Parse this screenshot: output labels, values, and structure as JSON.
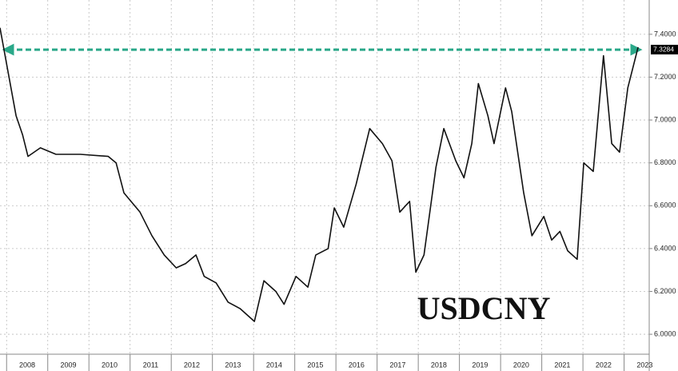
{
  "chart_data": {
    "type": "line",
    "title": "USDCNY",
    "color": "#111111",
    "x": [
      2007.84,
      2008.04,
      2008.23,
      2008.39,
      2008.52,
      2008.82,
      2009.2,
      2009.79,
      2010.47,
      2010.66,
      2010.85,
      2011.24,
      2011.53,
      2011.83,
      2012.12,
      2012.35,
      2012.6,
      2012.8,
      2013.09,
      2013.38,
      2013.67,
      2014.02,
      2014.25,
      2014.54,
      2014.74,
      2015.03,
      2015.32,
      2015.51,
      2015.81,
      2015.96,
      2016.19,
      2016.49,
      2016.82,
      2017.13,
      2017.36,
      2017.55,
      2017.79,
      2017.94,
      2018.14,
      2018.43,
      2018.62,
      2018.91,
      2019.11,
      2019.3,
      2019.46,
      2019.69,
      2019.84,
      2020.12,
      2020.27,
      2020.56,
      2020.76,
      2021.05,
      2021.24,
      2021.44,
      2021.63,
      2021.86,
      2022.02,
      2022.25,
      2022.5,
      2022.7,
      2022.89,
      2023.09,
      2023.34
    ],
    "values": [
      7.43,
      7.22,
      7.02,
      6.93,
      6.83,
      6.87,
      6.84,
      6.84,
      6.83,
      6.8,
      6.66,
      6.57,
      6.46,
      6.37,
      6.31,
      6.33,
      6.37,
      6.27,
      6.24,
      6.15,
      6.12,
      6.06,
      6.25,
      6.2,
      6.14,
      6.27,
      6.22,
      6.37,
      6.4,
      6.59,
      6.5,
      6.7,
      6.96,
      6.89,
      6.81,
      6.57,
      6.62,
      6.29,
      6.37,
      6.78,
      6.96,
      6.81,
      6.73,
      6.89,
      7.17,
      7.02,
      6.89,
      7.15,
      7.04,
      6.66,
      6.46,
      6.55,
      6.44,
      6.48,
      6.39,
      6.35,
      6.8,
      6.76,
      7.3,
      6.89,
      6.85,
      7.15,
      7.34
    ],
    "xlim": [
      2007.84,
      2023.61
    ],
    "ylim": [
      5.907,
      7.56
    ],
    "xticks": [
      2008,
      2009,
      2010,
      2011,
      2012,
      2013,
      2014,
      2015,
      2016,
      2017,
      2018,
      2019,
      2020,
      2021,
      2022,
      2023
    ],
    "yticks": [
      {
        "value": 6.0,
        "label": "6.0000"
      },
      {
        "value": 6.2,
        "label": "6.2000"
      },
      {
        "value": 6.4,
        "label": "6.4000"
      },
      {
        "value": 6.6,
        "label": "6.6000"
      },
      {
        "value": 6.8,
        "label": "6.8000"
      },
      {
        "value": 7.0,
        "label": "7.0000"
      },
      {
        "value": 7.2,
        "label": "7.2000"
      },
      {
        "value": 7.4,
        "label": "7.4000"
      }
    ],
    "reference_value": 7.3284,
    "reference_color": "#2aa889",
    "grid": true
  }
}
